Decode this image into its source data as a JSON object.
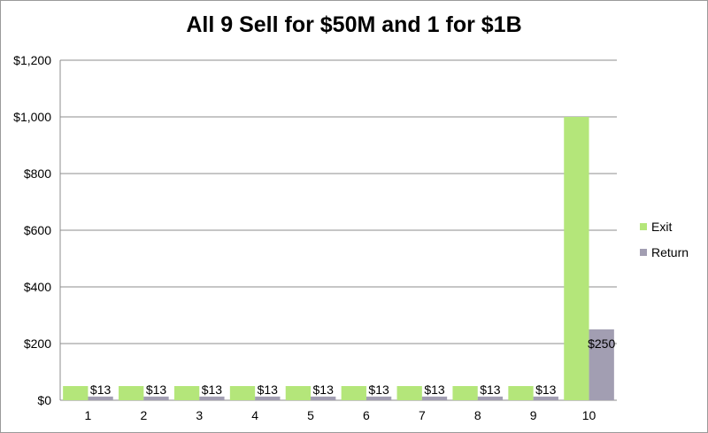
{
  "chart_data": {
    "type": "bar",
    "title": "All 9 Sell for $50M and 1 for $1B",
    "xlabel": "",
    "ylabel": "",
    "categories": [
      "1",
      "2",
      "3",
      "4",
      "5",
      "6",
      "7",
      "8",
      "9",
      "10"
    ],
    "series": [
      {
        "name": "Exit",
        "values": [
          50,
          50,
          50,
          50,
          50,
          50,
          50,
          50,
          50,
          1000
        ],
        "color": "#b4e67a"
      },
      {
        "name": "Return",
        "values": [
          13,
          13,
          13,
          13,
          13,
          13,
          13,
          13,
          13,
          250
        ],
        "color": "#a29eb2"
      }
    ],
    "data_labels": [
      "$13",
      "$13",
      "$13",
      "$13",
      "$13",
      "$13",
      "$13",
      "$13",
      "$13",
      "$250"
    ],
    "ylim": [
      0,
      1200
    ],
    "yticks": [
      0,
      200,
      400,
      600,
      800,
      1000,
      1200
    ],
    "ytick_labels": [
      "$0",
      "$200",
      "$400",
      "$600",
      "$800",
      "$1,000",
      "$1,200"
    ],
    "grid": true,
    "legend_position": "right"
  }
}
